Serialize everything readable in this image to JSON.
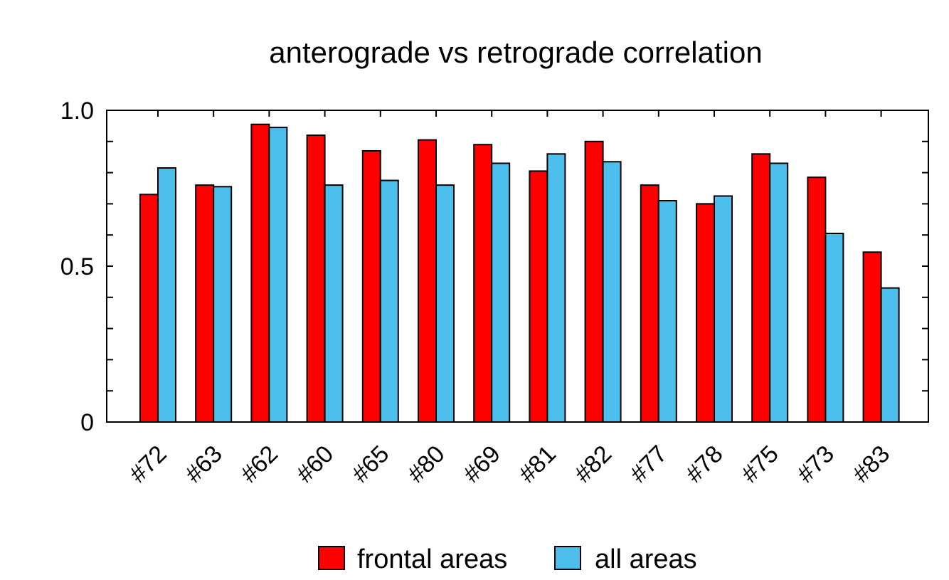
{
  "chart_data": {
    "type": "bar",
    "title": "anterograde vs retrograde correlation",
    "xlabel": "",
    "ylabel": "",
    "ylim": [
      0,
      1.0
    ],
    "yticks": [
      {
        "value": 0,
        "label": "0"
      },
      {
        "value": 0.5,
        "label": "0.5"
      },
      {
        "value": 1.0,
        "label": "1.0"
      }
    ],
    "categories": [
      "#72",
      "#63",
      "#62",
      "#60",
      "#65",
      "#80",
      "#69",
      "#81",
      "#82",
      "#77",
      "#78",
      "#75",
      "#73",
      "#83"
    ],
    "series": [
      {
        "name": "frontal areas",
        "color": "#ff0000",
        "values": [
          0.73,
          0.76,
          0.955,
          0.92,
          0.87,
          0.905,
          0.89,
          0.805,
          0.9,
          0.76,
          0.7,
          0.86,
          0.785,
          0.545
        ]
      },
      {
        "name": "all areas",
        "color": "#4dbfed",
        "values": [
          0.815,
          0.755,
          0.945,
          0.76,
          0.775,
          0.76,
          0.83,
          0.86,
          0.835,
          0.71,
          0.725,
          0.83,
          0.605,
          0.43
        ]
      }
    ],
    "legend_position": "bottom-center",
    "grid": false
  }
}
